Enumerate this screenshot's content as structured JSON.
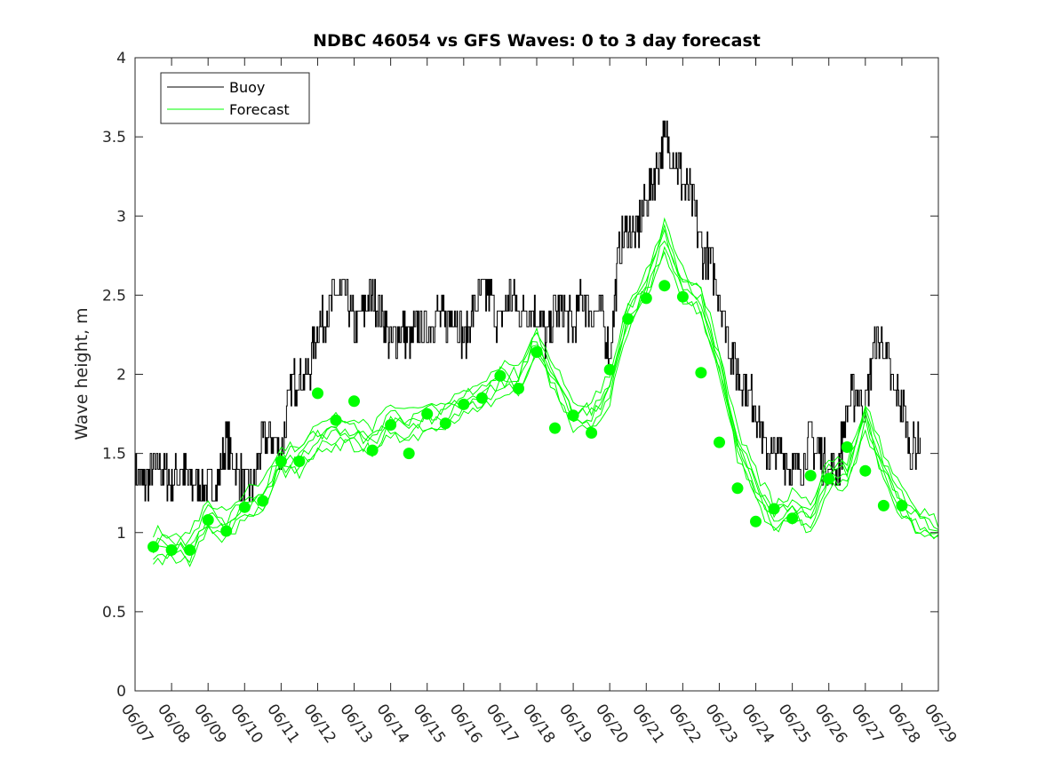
{
  "chart_data": {
    "type": "line",
    "title": "NDBC 46054 vs GFS Waves: 0 to 3 day forecast",
    "xlabel": "",
    "ylabel": "Wave height, m",
    "xlim": [
      "06/07",
      "06/29"
    ],
    "ylim": [
      0,
      4
    ],
    "x_ticks": [
      "06/07",
      "06/08",
      "06/09",
      "06/10",
      "06/11",
      "06/12",
      "06/13",
      "06/14",
      "06/15",
      "06/16",
      "06/17",
      "06/18",
      "06/19",
      "06/20",
      "06/21",
      "06/22",
      "06/23",
      "06/24",
      "06/25",
      "06/26",
      "06/27",
      "06/28",
      "06/29"
    ],
    "y_ticks": [
      "0",
      "0.5",
      "1",
      "1.5",
      "2",
      "2.5",
      "3",
      "3.5",
      "4"
    ],
    "grid": false,
    "legend": {
      "position": "top-left",
      "entries": [
        "Buoy",
        "Forecast"
      ]
    },
    "colors": {
      "buoy": "#000000",
      "forecast": "#00ff00"
    },
    "series": [
      {
        "name": "Buoy",
        "style": "line",
        "x": [
          "06/07 00:00",
          "06/07 06:00",
          "06/07 12:00",
          "06/07 18:00",
          "06/08 00:00",
          "06/08 06:00",
          "06/08 12:00",
          "06/08 18:00",
          "06/09 00:00",
          "06/09 06:00",
          "06/09 12:00",
          "06/09 18:00",
          "06/10 00:00",
          "06/10 06:00",
          "06/10 12:00",
          "06/10 18:00",
          "06/11 00:00",
          "06/11 06:00",
          "06/11 12:00",
          "06/11 18:00",
          "06/12 00:00",
          "06/12 06:00",
          "06/12 12:00",
          "06/12 18:00",
          "06/13 00:00",
          "06/13 06:00",
          "06/13 12:00",
          "06/13 18:00",
          "06/14 00:00",
          "06/14 06:00",
          "06/14 12:00",
          "06/14 18:00",
          "06/15 00:00",
          "06/15 06:00",
          "06/15 12:00",
          "06/15 18:00",
          "06/16 00:00",
          "06/16 06:00",
          "06/16 12:00",
          "06/16 18:00",
          "06/17 00:00",
          "06/17 06:00",
          "06/17 12:00",
          "06/17 18:00",
          "06/18 00:00",
          "06/18 06:00",
          "06/18 12:00",
          "06/18 18:00",
          "06/19 00:00",
          "06/19 06:00",
          "06/19 12:00",
          "06/19 18:00",
          "06/20 00:00",
          "06/20 06:00",
          "06/20 12:00",
          "06/20 18:00",
          "06/21 00:00",
          "06/21 06:00",
          "06/21 12:00",
          "06/21 18:00",
          "06/22 00:00",
          "06/22 06:00",
          "06/22 12:00",
          "06/22 18:00",
          "06/23 00:00",
          "06/23 06:00",
          "06/23 12:00",
          "06/23 18:00",
          "06/24 00:00",
          "06/24 06:00",
          "06/24 12:00",
          "06/24 18:00",
          "06/25 00:00",
          "06/25 06:00",
          "06/25 12:00",
          "06/25 18:00",
          "06/26 00:00",
          "06/26 06:00",
          "06/26 12:00",
          "06/26 18:00",
          "06/27 00:00",
          "06/27 06:00",
          "06/27 12:00",
          "06/27 18:00",
          "06/28 00:00",
          "06/28 06:00",
          "06/28 12:00"
        ],
        "y": [
          1.4,
          1.3,
          1.4,
          1.4,
          1.3,
          1.4,
          1.3,
          1.3,
          1.3,
          1.3,
          1.6,
          1.4,
          1.3,
          1.3,
          1.6,
          1.6,
          1.5,
          1.9,
          2.0,
          2.0,
          2.3,
          2.4,
          2.5,
          2.5,
          2.3,
          2.4,
          2.5,
          2.4,
          2.2,
          2.3,
          2.2,
          2.3,
          2.3,
          2.4,
          2.3,
          2.4,
          2.2,
          2.4,
          2.5,
          2.5,
          2.3,
          2.5,
          2.4,
          2.4,
          2.4,
          2.2,
          2.4,
          2.4,
          2.3,
          2.5,
          2.4,
          2.4,
          2.1,
          2.8,
          2.9,
          2.9,
          3.1,
          3.3,
          3.5,
          3.4,
          3.2,
          3.1,
          2.8,
          2.7,
          2.5,
          2.2,
          2.0,
          1.9,
          1.8,
          1.5,
          1.5,
          1.5,
          1.4,
          1.4,
          1.6,
          1.5,
          1.4,
          1.4,
          1.8,
          1.9,
          1.8,
          2.2,
          2.2,
          1.9,
          1.8,
          1.5,
          1.6
        ]
      },
      {
        "name": "Forecast",
        "style": "lines",
        "x": [
          "06/07 12:00",
          "06/08 00:00",
          "06/08 12:00",
          "06/09 00:00",
          "06/09 12:00",
          "06/10 00:00",
          "06/10 12:00",
          "06/11 00:00",
          "06/11 12:00",
          "06/12 00:00",
          "06/12 12:00",
          "06/13 00:00",
          "06/13 12:00",
          "06/14 00:00",
          "06/14 12:00",
          "06/15 00:00",
          "06/15 12:00",
          "06/16 00:00",
          "06/16 12:00",
          "06/17 00:00",
          "06/17 12:00",
          "06/18 00:00",
          "06/18 12:00",
          "06/19 00:00",
          "06/19 12:00",
          "06/20 00:00",
          "06/20 12:00",
          "06/21 00:00",
          "06/21 12:00",
          "06/22 00:00",
          "06/22 12:00",
          "06/23 00:00",
          "06/23 12:00",
          "06/24 00:00",
          "06/24 12:00",
          "06/25 00:00",
          "06/25 12:00",
          "06/26 00:00",
          "06/26 12:00",
          "06/27 00:00",
          "06/27 12:00",
          "06/28 00:00",
          "06/28 12:00",
          "06/29 00:00"
        ],
        "y": [
          0.91,
          0.89,
          0.89,
          1.08,
          1.01,
          1.16,
          1.2,
          1.45,
          1.45,
          1.58,
          1.62,
          1.62,
          1.55,
          1.7,
          1.65,
          1.72,
          1.72,
          1.82,
          1.85,
          1.95,
          1.95,
          2.2,
          1.95,
          1.72,
          1.72,
          1.9,
          2.35,
          2.55,
          2.85,
          2.55,
          2.45,
          2.05,
          1.55,
          1.28,
          1.07,
          1.15,
          1.08,
          1.36,
          1.36,
          1.72,
          1.4,
          1.17,
          1.05,
          1.0
        ]
      },
      {
        "name": "Forecast",
        "style": "markers",
        "x": [
          "06/07 12:00",
          "06/08 00:00",
          "06/08 12:00",
          "06/09 00:00",
          "06/09 12:00",
          "06/10 00:00",
          "06/10 12:00",
          "06/11 00:00",
          "06/11 12:00",
          "06/12 00:00",
          "06/12 12:00",
          "06/13 00:00",
          "06/13 12:00",
          "06/14 00:00",
          "06/14 12:00",
          "06/15 00:00",
          "06/15 12:00",
          "06/16 00:00",
          "06/16 12:00",
          "06/17 00:00",
          "06/17 12:00",
          "06/18 00:00",
          "06/18 12:00",
          "06/19 00:00",
          "06/19 12:00",
          "06/20 00:00",
          "06/20 12:00",
          "06/21 00:00",
          "06/21 12:00",
          "06/22 00:00",
          "06/22 12:00",
          "06/23 00:00",
          "06/23 12:00",
          "06/24 00:00",
          "06/24 12:00",
          "06/25 00:00",
          "06/25 12:00",
          "06/26 00:00",
          "06/26 12:00",
          "06/27 00:00",
          "06/27 12:00",
          "06/28 00:00"
        ],
        "y": [
          0.91,
          0.89,
          0.89,
          1.08,
          1.01,
          1.16,
          1.2,
          1.45,
          1.45,
          1.88,
          1.71,
          1.83,
          1.52,
          1.68,
          1.5,
          1.75,
          1.69,
          1.81,
          1.85,
          1.99,
          1.91,
          2.14,
          1.66,
          1.74,
          1.63,
          2.03,
          2.35,
          2.48,
          2.56,
          2.49,
          2.01,
          1.57,
          1.28,
          1.07,
          1.15,
          1.09,
          1.36,
          1.34,
          1.54,
          1.39,
          1.17,
          1.17
        ]
      }
    ]
  }
}
